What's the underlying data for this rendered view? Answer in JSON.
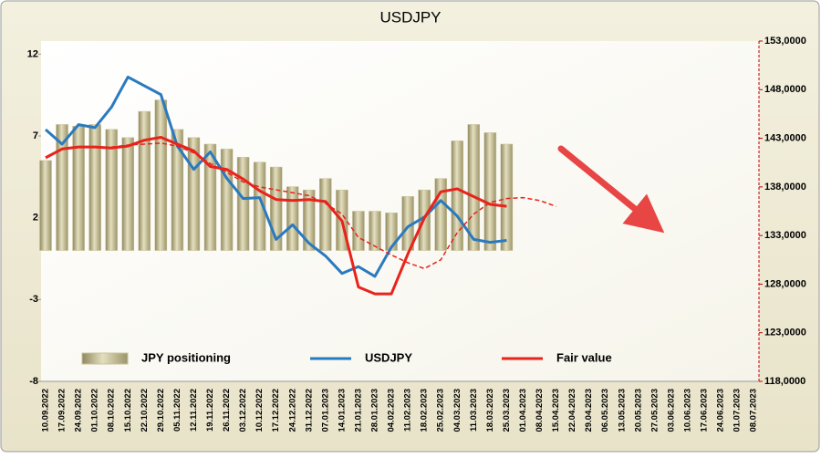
{
  "chart_data": {
    "type": "combo",
    "title": "USDJPY",
    "categories": [
      "10.09.2022",
      "17.09.2022",
      "24.09.2022",
      "01.10.2022",
      "08.10.2022",
      "15.10.2022",
      "22.10.2022",
      "29.10.2022",
      "05.11.2022",
      "12.11.2022",
      "19.11.2022",
      "26.11.2022",
      "03.12.2022",
      "10.12.2022",
      "17.12.2022",
      "24.12.2022",
      "31.12.2022",
      "07.01.2023",
      "14.01.2023",
      "21.01.2023",
      "28.01.2023",
      "04.02.2023",
      "11.02.2023",
      "18.02.2023",
      "25.02.2023",
      "04.03.2023",
      "11.03.2023",
      "18.03.2023",
      "25.03.2023",
      "01.04.2023",
      "08.04.2023",
      "15.04.2023",
      "22.04.2023",
      "29.04.2023",
      "06.05.2023",
      "13.05.2023",
      "20.05.2023",
      "27.05.2023",
      "03.06.2023",
      "10.06.2023",
      "17.06.2023",
      "24.06.2023",
      "01.07.2023",
      "08.07.2023"
    ],
    "series": [
      {
        "name": "JPY positioning",
        "type": "bar",
        "color": "#c9c19a",
        "values": [
          5.5,
          7.7,
          7.6,
          7.7,
          7.4,
          6.9,
          8.5,
          9.2,
          7.4,
          6.9,
          6.5,
          6.2,
          5.7,
          5.4,
          5.1,
          3.9,
          3.7,
          4.4,
          3.7,
          2.4,
          2.4,
          2.3,
          3.3,
          3.7,
          4.4,
          6.7,
          7.7,
          7.2,
          6.5,
          null,
          null,
          null,
          null,
          null,
          null,
          null,
          null,
          null,
          null,
          null,
          null,
          null,
          null,
          null
        ]
      },
      {
        "name": "USDJPY",
        "type": "line",
        "axis": "y2",
        "color": "#2a7abf",
        "values": [
          143.9,
          142.4,
          144.4,
          144.1,
          146.2,
          149.3,
          148.4,
          147.5,
          142.2,
          139.8,
          141.6,
          138.9,
          136.8,
          136.9,
          132.6,
          134.1,
          132.2,
          130.9,
          129.1,
          129.8,
          128.8,
          131.8,
          133.9,
          134.9,
          136.6,
          135.0,
          132.6,
          132.3,
          132.5,
          null,
          null,
          null,
          null,
          null,
          null,
          null,
          null,
          null,
          null,
          null,
          null,
          null,
          null,
          null
        ]
      },
      {
        "name": "Fair value",
        "type": "line",
        "axis": "y2",
        "color": "#e8231b",
        "values": [
          141.0,
          141.9,
          142.1,
          142.1,
          142.0,
          142.2,
          142.8,
          143.1,
          142.4,
          141.7,
          140.1,
          139.8,
          138.8,
          137.6,
          136.7,
          136.6,
          136.7,
          136.5,
          134.5,
          127.7,
          127.0,
          127.0,
          131.1,
          134.8,
          137.5,
          137.8,
          137.0,
          136.2,
          136.0,
          null,
          null,
          null,
          null,
          null,
          null,
          null,
          null,
          null,
          null,
          null,
          null,
          null,
          null,
          null
        ]
      },
      {
        "type": "line",
        "axis": "y2",
        "color": "#e8231b",
        "style": "dashed",
        "values": [
          null,
          null,
          null,
          null,
          142.1,
          142.3,
          142.4,
          142.5,
          142.2,
          141.5,
          140.4,
          139.5,
          138.5,
          138.0,
          137.7,
          137.4,
          137.1,
          136.3,
          135.2,
          132.8,
          131.9,
          131.0,
          130.2,
          129.6,
          130.5,
          133.3,
          135.2,
          136.4,
          136.8,
          136.9,
          136.6,
          136.0,
          null,
          null,
          null,
          null,
          null,
          null,
          null,
          null,
          null,
          null,
          null,
          null
        ]
      }
    ],
    "ylim": [
      -8,
      12.8
    ],
    "yticks": [
      -8,
      -3,
      2,
      7,
      12
    ],
    "y2lim": [
      118,
      153
    ],
    "y2ticks": [
      {
        "value": 118,
        "label": "118,0000"
      },
      {
        "value": 123,
        "label": "123,0000"
      },
      {
        "value": 128,
        "label": "128,0000"
      },
      {
        "value": 133,
        "label": "133,0000"
      },
      {
        "value": 138,
        "label": "138,0000"
      },
      {
        "value": 143,
        "label": "143,0000"
      },
      {
        "value": 148,
        "label": "148,0000"
      },
      {
        "value": 153,
        "label": "153,0000"
      }
    ]
  }
}
